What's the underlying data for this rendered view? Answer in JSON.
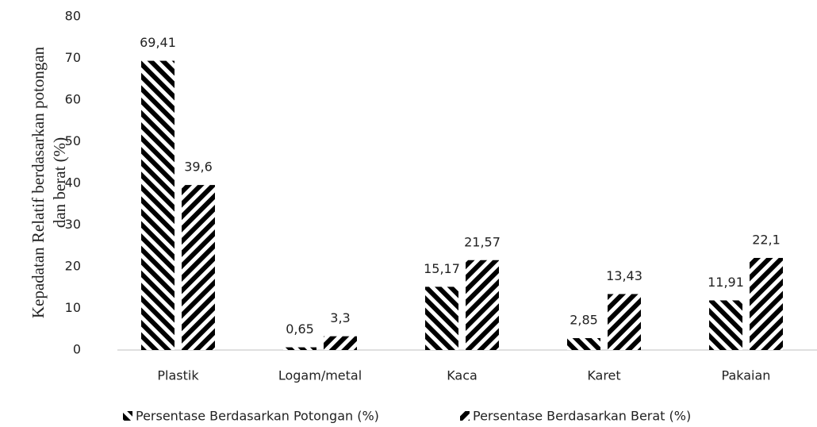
{
  "chart_data": {
    "type": "bar",
    "ylabel": [
      "Kepadatan Relatif berdasarkan potongan",
      "dan berat (%)"
    ],
    "categories": [
      "Plastik",
      "Logam/metal",
      "Kaca",
      "Karet",
      "Pakaian"
    ],
    "series": [
      {
        "name": "Persentase Berdasarkan Potongan (%)",
        "color": "#000000",
        "hatch": "backslash",
        "values": [
          69.41,
          0.65,
          15.17,
          2.85,
          11.91
        ],
        "value_labels": [
          "69,41",
          "0,65",
          "15,17",
          "2,85",
          "11,91"
        ]
      },
      {
        "name": "Persentase Berdasarkan Berat (%)",
        "color": "#000000",
        "hatch": "slash",
        "values": [
          39.6,
          3.3,
          21.57,
          13.43,
          22.1
        ],
        "value_labels": [
          "39,6",
          "3,3",
          "21,57",
          "13,43",
          "22,1"
        ]
      }
    ],
    "ylim": [
      0,
      80
    ],
    "yticks": [
      0,
      10,
      20,
      30,
      40,
      50,
      60,
      70,
      80
    ],
    "grid": false,
    "legend": "bottom"
  }
}
